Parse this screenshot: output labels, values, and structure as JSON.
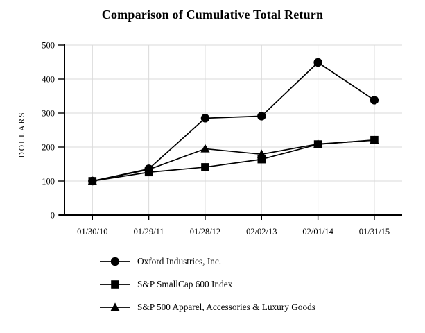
{
  "chart_data": {
    "type": "line",
    "title": "Comparison of Cumulative Total Return",
    "xlabel": "",
    "ylabel": "DOLLARS",
    "categories": [
      "01/30/10",
      "01/29/11",
      "01/28/12",
      "02/02/13",
      "02/01/14",
      "01/31/15"
    ],
    "ylim": [
      0,
      500
    ],
    "ytick_interval": 100,
    "grid": true,
    "legend_position": "bottom-left",
    "series": [
      {
        "name": "Oxford Industries, Inc.",
        "marker": "circle",
        "values": [
          100,
          136,
          285,
          291,
          449,
          338
        ]
      },
      {
        "name": "S&P SmallCap 600 Index",
        "marker": "square",
        "values": [
          100,
          126,
          141,
          164,
          208,
          221
        ]
      },
      {
        "name": "S&P 500 Apparel, Accessories & Luxury Goods",
        "marker": "triangle",
        "values": [
          100,
          134,
          195,
          179,
          209,
          220
        ]
      }
    ],
    "colors": {
      "line": "#000000",
      "marker": "#000000",
      "grid": "#d9d9d9",
      "axis": "#000000",
      "text": "#000000",
      "background": "#ffffff"
    }
  }
}
